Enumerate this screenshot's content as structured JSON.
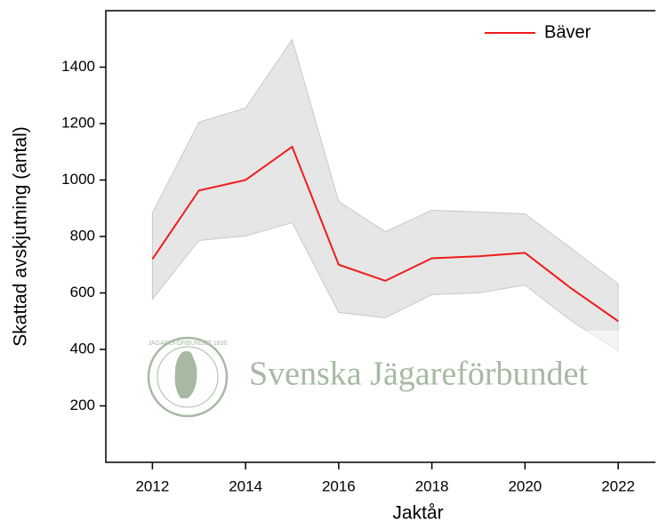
{
  "chart_data": {
    "type": "line",
    "xlabel": "Jaktår",
    "ylabel": "Skattad avskjutning (antal)",
    "x": [
      2012,
      2013,
      2014,
      2015,
      2016,
      2017,
      2018,
      2019,
      2020,
      2021,
      2022
    ],
    "series": [
      {
        "name": "Bäver",
        "color": "#ee1c1c",
        "band_color": "#e6e6e6",
        "values": [
          720,
          963,
          1000,
          1118,
          700,
          643,
          723,
          730,
          742,
          615,
          500
        ],
        "upper": [
          883,
          1205,
          1255,
          1498,
          924,
          817,
          893,
          887,
          880,
          757,
          632
        ],
        "lower": [
          578,
          786,
          802,
          849,
          531,
          512,
          594,
          600,
          628,
          500,
          395
        ]
      }
    ],
    "xlim": [
      2011,
      2022.8
    ],
    "xticks": [
      2012,
      2014,
      2016,
      2018,
      2020,
      2022
    ],
    "ylim": [
      0,
      1600
    ],
    "yticks": [
      200,
      400,
      600,
      800,
      1000,
      1200,
      1400
    ],
    "legend": "upper right",
    "watermark": {
      "text": "Svenska Jägareförbundet",
      "logo_text": "JÄGAREFÖRBUNDET 1830"
    }
  }
}
